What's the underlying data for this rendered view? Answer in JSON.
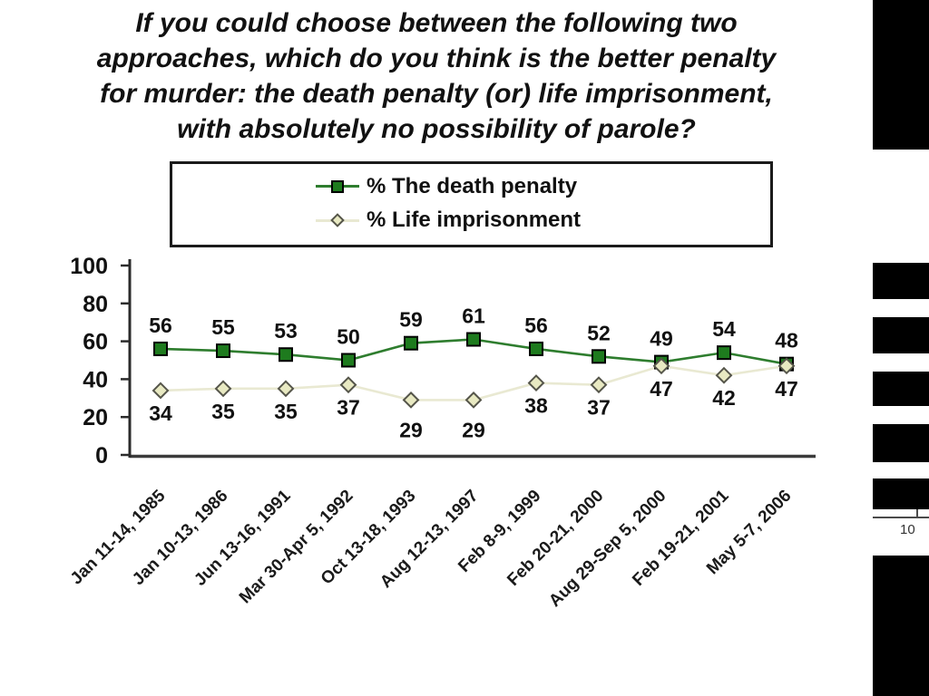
{
  "header": {
    "lines": [
      "If you could choose between the following two",
      "approaches, which do you think is the better penalty",
      "for murder: the death penalty (or) life imprisonment,",
      "with absolutely no possibility of parole?"
    ]
  },
  "chart_data": {
    "type": "line",
    "title": "If you could choose between the following two approaches, which do you think is the better penalty for murder: the death penalty (or) life imprisonment, with absolutely no possibility of parole?",
    "categories": [
      "Jan 11-14, 1985",
      "Jan 10-13, 1986",
      "Jun 13-16, 1991",
      "Mar 30-Apr 5, 1992",
      "Oct 13-18, 1993",
      "Aug 12-13, 1997",
      "Feb 8-9, 1999",
      "Feb 20-21, 2000",
      "Aug 29-Sep 5, 2000",
      "Feb 19-21, 2001",
      "May 5-7, 2006"
    ],
    "series": [
      {
        "name": "% The death penalty",
        "values": [
          56,
          55,
          53,
          50,
          59,
          61,
          56,
          52,
          49,
          54,
          48
        ],
        "color": "#2e7d2e",
        "marker": "square",
        "marker_fill": "#1e7b1e",
        "marker_edge": "#000000",
        "label_side": "above"
      },
      {
        "name": "% Life imprisonment",
        "values": [
          34,
          35,
          35,
          37,
          29,
          29,
          38,
          37,
          47,
          42,
          47
        ],
        "color": "#e9e9d2",
        "marker": "diamond",
        "marker_fill": "#e8e9c2",
        "marker_edge": "#55554a",
        "label_side": "below",
        "label_extra_drop_indexes": [
          4,
          5
        ]
      }
    ],
    "ylim": [
      0,
      100
    ],
    "yticks": [
      0,
      20,
      40,
      60,
      80,
      100
    ],
    "grid": false,
    "legend_position": "top-center",
    "data_labels": true,
    "label_color": "#111111"
  },
  "ruler": {
    "label": "10"
  }
}
